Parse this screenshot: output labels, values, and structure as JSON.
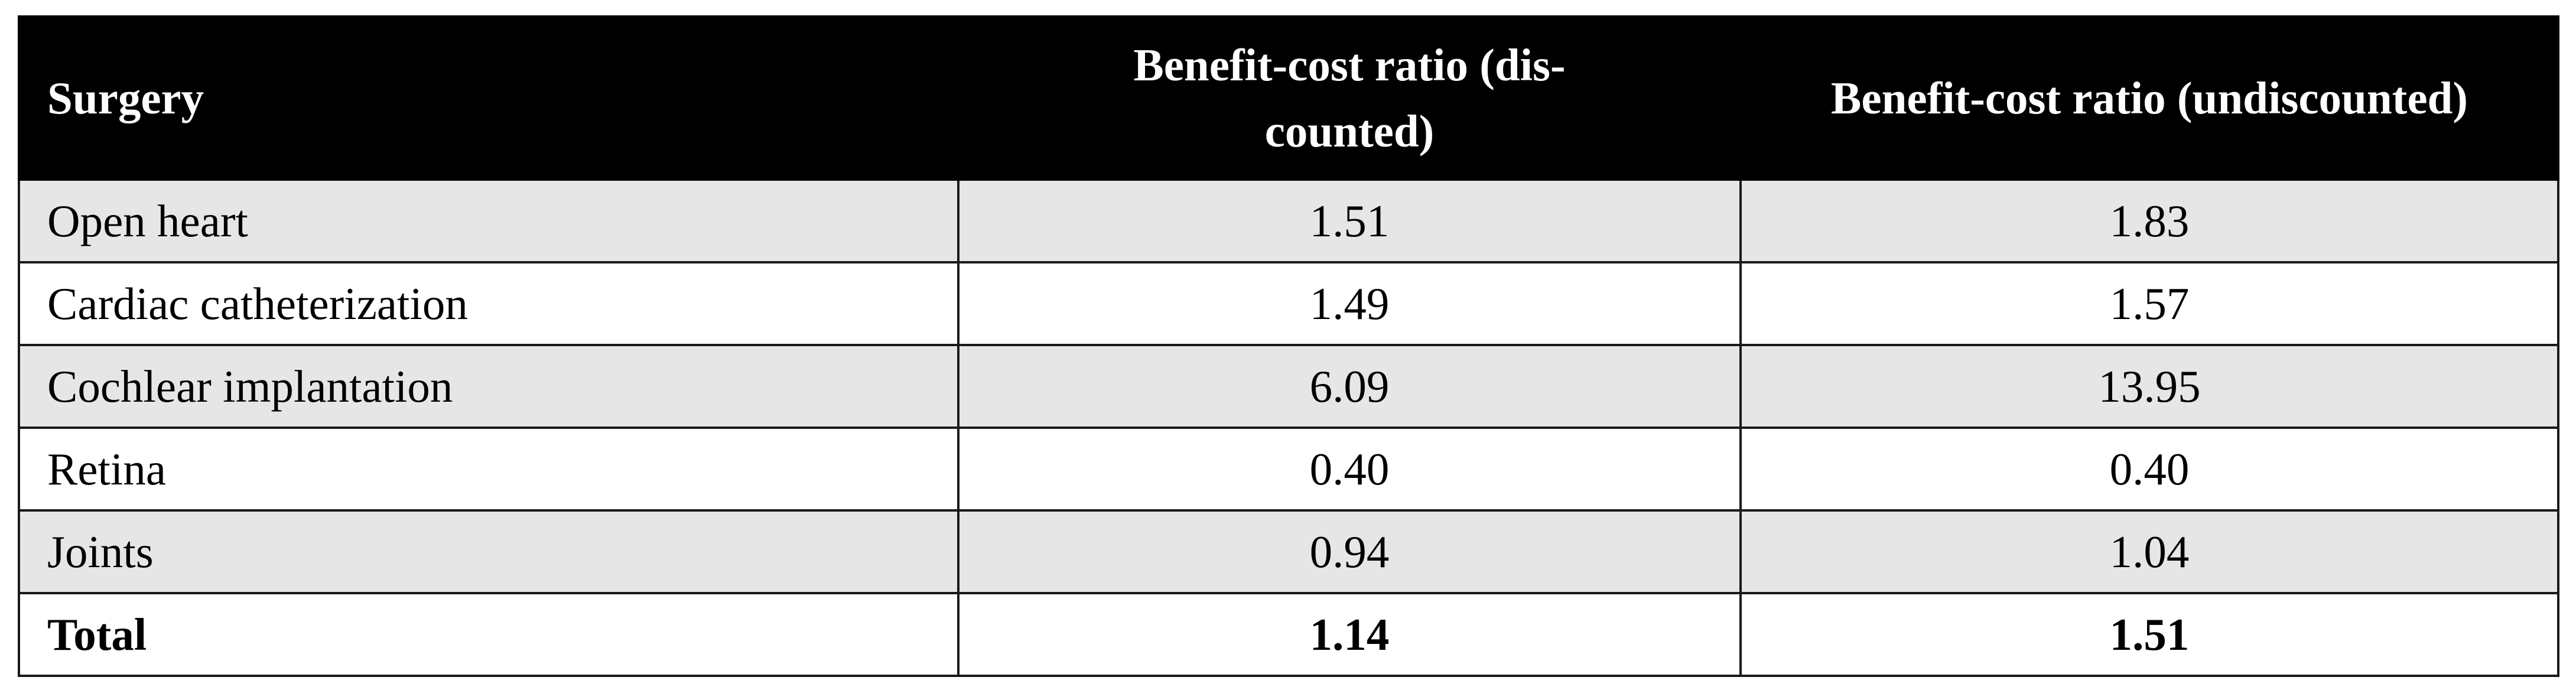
{
  "table": {
    "headers": [
      "Surgery",
      "Benefit-cost ratio (dis-counted)",
      "Benefit-cost ratio (undiscounted)"
    ],
    "header_lines": {
      "discounted": [
        "Benefit-cost ratio (dis-",
        "counted)"
      ]
    },
    "rows": [
      {
        "surgery": "Open heart",
        "discounted": "1.51",
        "undiscounted": "1.83",
        "shaded": true
      },
      {
        "surgery": "Cardiac catheterization",
        "discounted": "1.49",
        "undiscounted": "1.57",
        "shaded": false
      },
      {
        "surgery": "Cochlear implantation",
        "discounted": "6.09",
        "undiscounted": "13.95",
        "shaded": true
      },
      {
        "surgery": "Retina",
        "discounted": "0.40",
        "undiscounted": "0.40",
        "shaded": false
      },
      {
        "surgery": "Joints",
        "discounted": "0.94",
        "undiscounted": "1.04",
        "shaded": true
      }
    ],
    "total": {
      "surgery": "Total",
      "discounted": "1.14",
      "undiscounted": "1.51"
    },
    "colors": {
      "header_bg": "#000000",
      "header_text": "#ffffff",
      "shaded_row": "#e6e6e6",
      "plain_row": "#ffffff"
    }
  }
}
